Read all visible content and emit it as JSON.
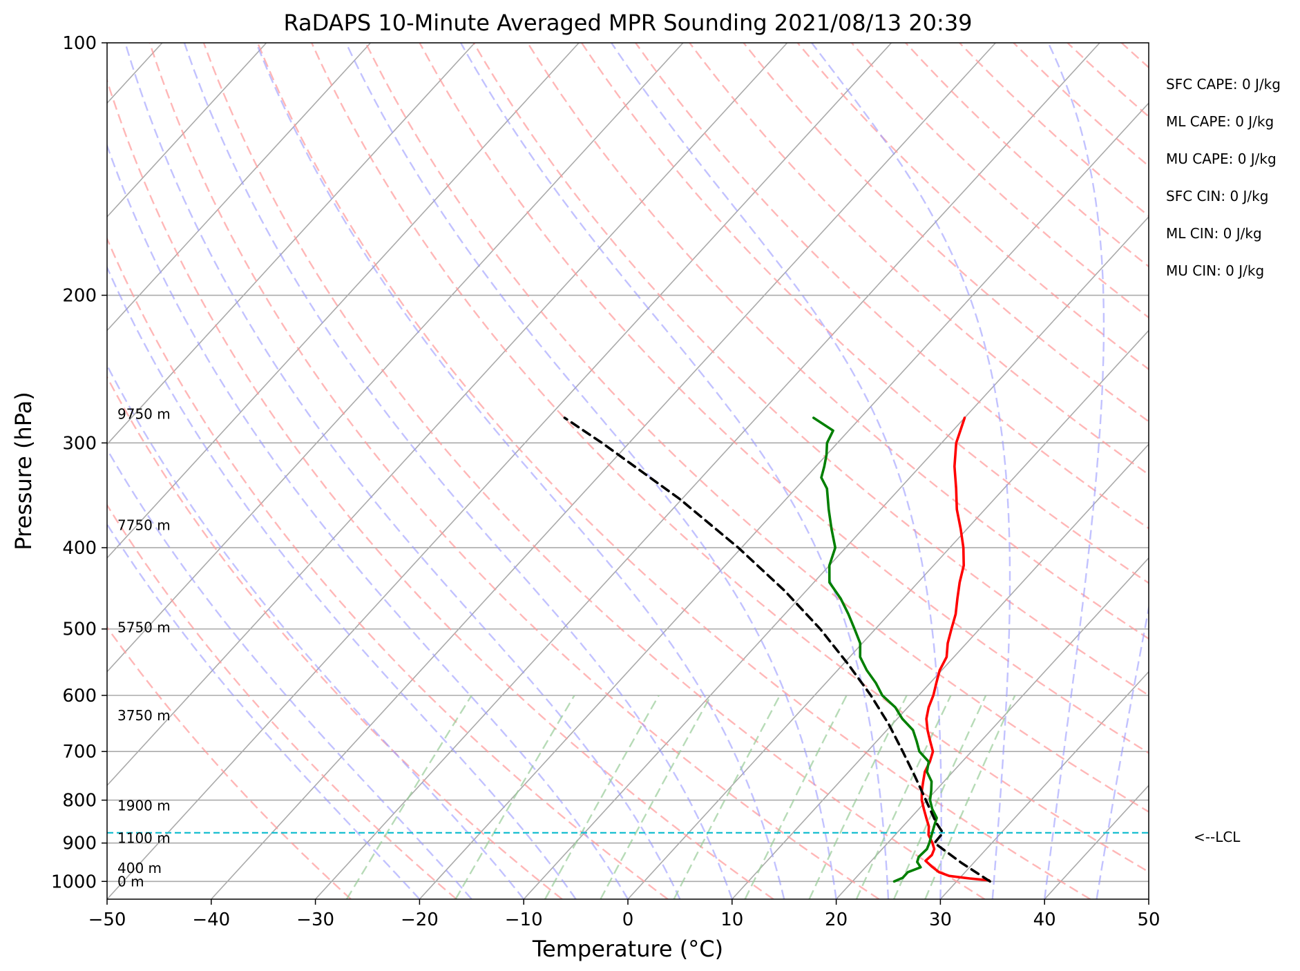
{
  "chart_data": {
    "type": "line",
    "title": "RaDAPS 10-Minute Averaged MPR Sounding 2021/08/13 20:39",
    "xlabel": "Temperature (°C)",
    "ylabel": "Pressure (hPa)",
    "xlim": [
      -50,
      50
    ],
    "ylim": [
      1050,
      100
    ],
    "y_scale": "log",
    "grid": true,
    "x_ticks": [
      -50,
      -40,
      -30,
      -20,
      -10,
      0,
      10,
      20,
      30,
      40,
      50
    ],
    "x_tick_labels": [
      "−50",
      "−40",
      "−30",
      "−20",
      "−10",
      "0",
      "10",
      "20",
      "30",
      "40",
      "50"
    ],
    "y_ticks": [
      100,
      200,
      300,
      400,
      500,
      600,
      700,
      800,
      900,
      1000
    ],
    "y_tick_labels": [
      "100",
      "200",
      "300",
      "400",
      "500",
      "600",
      "700",
      "800",
      "900",
      "1000"
    ],
    "colors": {
      "temperature": "#ff0000",
      "dewpoint": "#007f00",
      "parcel": "#000000",
      "lcl": "#17becf",
      "isotherm": "#aaaaaa",
      "dry_adiabat": "#ff9999",
      "moist_adiabat": "#9999ff",
      "mixing_ratio": "#99cc99"
    },
    "series": [
      {
        "key": "temperature",
        "p": [
          997,
          992,
          985,
          975,
          960,
          945,
          930,
          915,
          900,
          880,
          860,
          840,
          820,
          800,
          780,
          760,
          740,
          720,
          700,
          680,
          660,
          640,
          620,
          600,
          580,
          560,
          540,
          520,
          500,
          480,
          460,
          440,
          420,
          400,
          380,
          360,
          340,
          320,
          300,
          280
        ],
        "t": [
          33.0,
          31.0,
          28.8,
          27.5,
          26.3,
          25.2,
          25.3,
          25.0,
          24.3,
          23.2,
          22.5,
          21.5,
          20.5,
          19.5,
          18.7,
          18.0,
          17.3,
          16.9,
          16.3,
          15.1,
          13.9,
          12.8,
          12.0,
          11.4,
          10.6,
          9.8,
          9.3,
          8.2,
          7.3,
          6.4,
          5.2,
          4.0,
          2.9,
          1.3,
          -0.6,
          -2.7,
          -4.6,
          -6.7,
          -8.6,
          -10.0
        ]
      },
      {
        "key": "dewpoint",
        "p": [
          1000,
          990,
          975,
          962,
          948,
          935,
          915,
          900,
          880,
          860,
          840,
          820,
          800,
          780,
          760,
          740,
          720,
          700,
          680,
          660,
          640,
          620,
          600,
          580,
          560,
          540,
          520,
          500,
          480,
          460,
          440,
          420,
          400,
          380,
          360,
          340,
          330,
          320,
          310,
          300,
          290,
          280
        ],
        "t": [
          24.0,
          24.5,
          24.5,
          25.3,
          24.5,
          24.2,
          24.3,
          24.0,
          23.5,
          23.0,
          22.5,
          21.3,
          20.3,
          19.6,
          18.8,
          17.5,
          16.8,
          15.0,
          13.8,
          12.5,
          10.5,
          8.8,
          6.5,
          4.8,
          2.8,
          1.0,
          -0.2,
          -2.0,
          -3.9,
          -6.0,
          -8.5,
          -10.0,
          -11.0,
          -13.0,
          -15.0,
          -17.0,
          -18.5,
          -19.2,
          -20.0,
          -21.0,
          -21.5,
          -24.5
        ]
      },
      {
        "key": "parcel",
        "p": [
          1000,
          950,
          900,
          875,
          850,
          800,
          750,
          700,
          650,
          600,
          550,
          500,
          450,
          400,
          350,
          300,
          280
        ],
        "t": [
          33.2,
          28.8,
          24.5,
          24.4,
          22.8,
          19.9,
          16.8,
          13.4,
          9.7,
          5.4,
          0.4,
          -5.3,
          -12.1,
          -20.3,
          -30.2,
          -42.6,
          -48.4
        ]
      }
    ],
    "lcl": {
      "pressure": 875,
      "label": "<--LCL"
    },
    "height_labels": [
      {
        "p": 1000,
        "text": "0 m"
      },
      {
        "p": 964,
        "text": "400 m"
      },
      {
        "p": 888,
        "text": "1100 m"
      },
      {
        "p": 812,
        "text": "1900 m"
      },
      {
        "p": 634,
        "text": "3750 m"
      },
      {
        "p": 498,
        "text": "5750 m"
      },
      {
        "p": 376,
        "text": "7750 m"
      },
      {
        "p": 277,
        "text": "9750 m"
      }
    ],
    "indices": [
      "SFC CAPE: 0 J/kg",
      "ML CAPE: 0 J/kg",
      "MU CAPE: 0 J/kg",
      "SFC CIN: 0 J/kg",
      "ML CIN: 0 J/kg",
      "MU CIN: 0 J/kg"
    ]
  }
}
